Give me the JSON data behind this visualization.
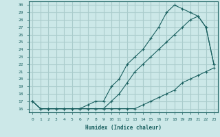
{
  "xlabel": "Humidex (Indice chaleur)",
  "bg_color": "#cce8e8",
  "grid_color": "#aacccc",
  "line_color": "#1a6060",
  "xlim": [
    -0.5,
    23.5
  ],
  "ylim": [
    15.5,
    30.5
  ],
  "xticks": [
    0,
    1,
    2,
    3,
    4,
    5,
    6,
    7,
    8,
    9,
    10,
    11,
    12,
    13,
    14,
    15,
    16,
    17,
    18,
    19,
    20,
    21,
    22,
    23
  ],
  "yticks": [
    16,
    17,
    18,
    19,
    20,
    21,
    22,
    23,
    24,
    25,
    26,
    27,
    28,
    29,
    30
  ],
  "line1_x": [
    0,
    1,
    2,
    3,
    4,
    5,
    6,
    7,
    8,
    9,
    10,
    11,
    12,
    13,
    14,
    15,
    16,
    17,
    18,
    19,
    20,
    21,
    22,
    23
  ],
  "line1_y": [
    17,
    16,
    16,
    16,
    16,
    16,
    16,
    16,
    16,
    16,
    16,
    16,
    16,
    16,
    16.5,
    17,
    17.5,
    18,
    18.5,
    19.5,
    20,
    20.5,
    21,
    21.5
  ],
  "line2_x": [
    0,
    1,
    2,
    3,
    4,
    5,
    6,
    7,
    8,
    9,
    10,
    11,
    12,
    13,
    14,
    15,
    16,
    17,
    18,
    19,
    20,
    21,
    22,
    23
  ],
  "line2_y": [
    17,
    16,
    16,
    16,
    16,
    16,
    16,
    16,
    16,
    16,
    17,
    18,
    19.5,
    21,
    22,
    23,
    24,
    25,
    26,
    27,
    28,
    28.5,
    27,
    22
  ],
  "line3_x": [
    0,
    1,
    2,
    3,
    4,
    5,
    6,
    7,
    8,
    9,
    10,
    11,
    12,
    13,
    14,
    15,
    16,
    17,
    18,
    19,
    20,
    21,
    22,
    23
  ],
  "line3_y": [
    17,
    16,
    16,
    16,
    16,
    16,
    16,
    16.5,
    17,
    17,
    19,
    20,
    22,
    23,
    24,
    25.5,
    27,
    29,
    30,
    29.5,
    29,
    28.5,
    27,
    22
  ]
}
